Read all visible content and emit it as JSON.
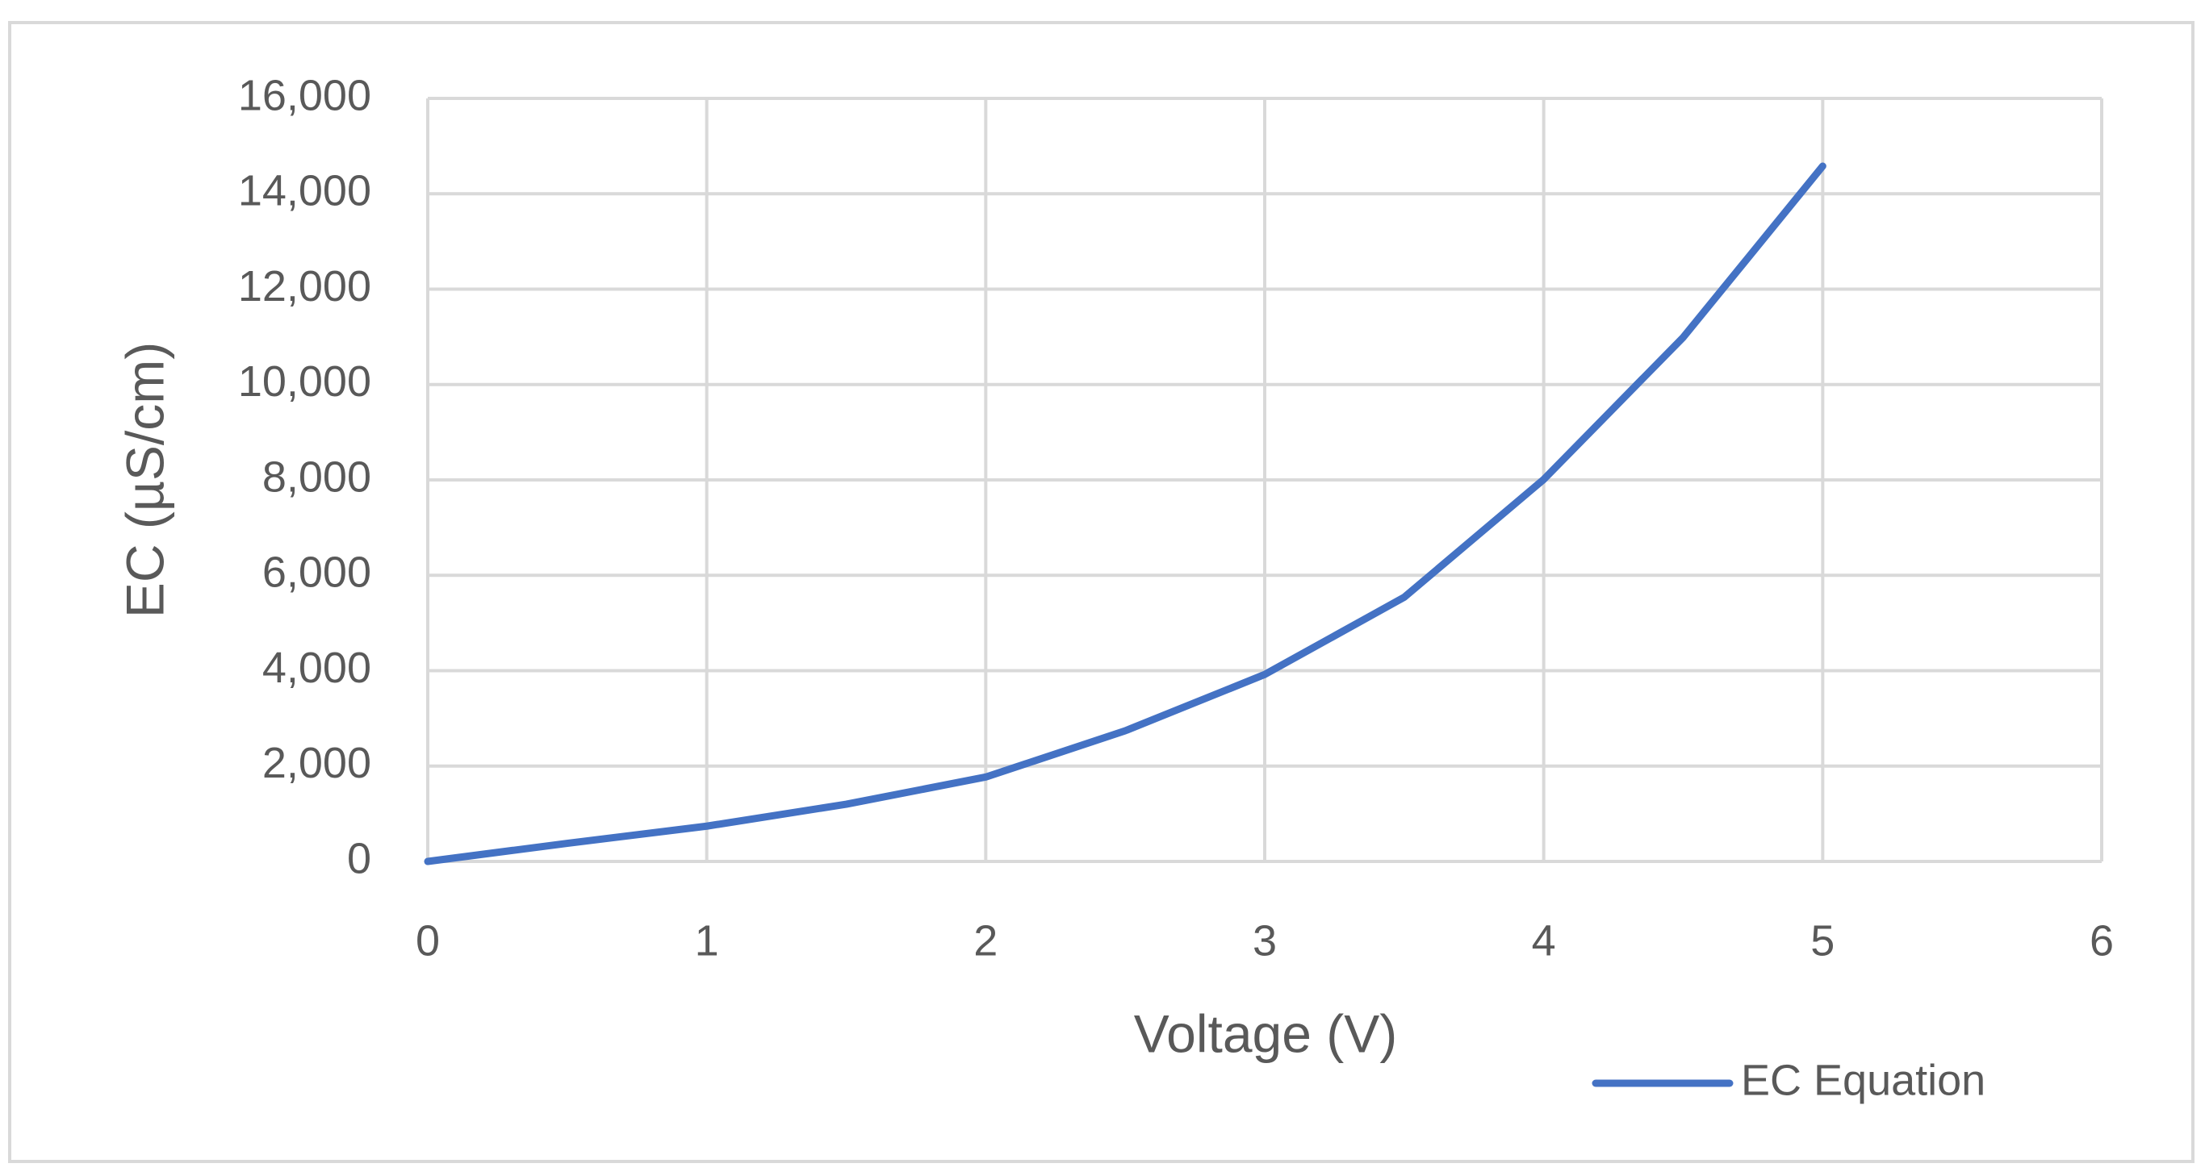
{
  "chart_data": {
    "type": "line",
    "x_label": "Voltage (V)",
    "y_label": "EC (µS/cm)",
    "x": [
      0,
      0.5,
      1,
      1.5,
      2,
      2.5,
      3,
      3.5,
      4,
      4.5,
      5
    ],
    "series": [
      {
        "name": "EC Equation",
        "color": "#4472c4",
        "values": [
          0,
          380,
          740,
          1200,
          1770,
          2740,
          3920,
          5540,
          8010,
          10990,
          14580
        ]
      }
    ],
    "xlim": [
      0,
      6
    ],
    "xticks": [
      0,
      1,
      2,
      3,
      4,
      5,
      6
    ],
    "ylim": [
      0,
      16000
    ],
    "yticks": [
      0,
      {
        "value": 2000,
        "label": "2,000"
      },
      {
        "value": 4000,
        "label": "4,000"
      },
      {
        "value": 6000,
        "label": "6,000"
      },
      {
        "value": 8000,
        "label": "8,000"
      },
      {
        "value": 10000,
        "label": "10,000"
      },
      {
        "value": 12000,
        "label": "12,000"
      },
      {
        "value": 14000,
        "label": "14,000"
      },
      {
        "value": 16000,
        "label": "16,000"
      }
    ],
    "grid": true,
    "legend": "bottom-right"
  }
}
